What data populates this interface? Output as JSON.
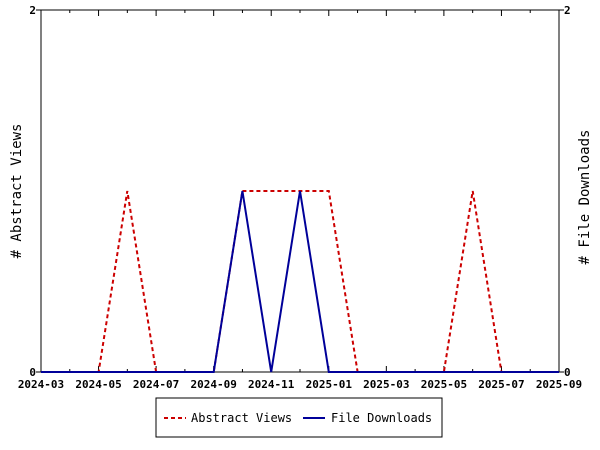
{
  "chart_data": {
    "type": "line",
    "x": [
      "2024-03",
      "2024-04",
      "2024-05",
      "2024-06",
      "2024-07",
      "2024-08",
      "2024-09",
      "2024-10",
      "2024-11",
      "2024-12",
      "2025-01",
      "2025-02",
      "2025-03",
      "2025-04",
      "2025-05",
      "2025-06",
      "2025-07",
      "2025-08",
      "2025-09"
    ],
    "x_tick_labels": [
      "2024-03",
      "2024-05",
      "2024-07",
      "2024-09",
      "2024-11",
      "2025-01",
      "2025-03",
      "2025-05",
      "2025-07",
      "2025-09"
    ],
    "series": [
      {
        "name": "Abstract Views",
        "axis": "left",
        "color": "#cc0000",
        "style": "dashed",
        "values": [
          0,
          0,
          0,
          1,
          0,
          0,
          0,
          1,
          1,
          1,
          1,
          0,
          0,
          0,
          0,
          1,
          0,
          0,
          0
        ]
      },
      {
        "name": "File Downloads",
        "axis": "right",
        "color": "#000099",
        "style": "solid",
        "values": [
          0,
          0,
          0,
          0,
          0,
          0,
          0,
          1,
          0,
          1,
          0,
          0,
          0,
          0,
          0,
          0,
          0,
          0,
          0
        ]
      }
    ],
    "ylabel_left": "# Abstract Views",
    "ylabel_right": "# File Downloads",
    "ylim": [
      0,
      2
    ],
    "y_tick_labels": [
      "0",
      "2"
    ],
    "grid": false,
    "legend_position": "bottom"
  }
}
